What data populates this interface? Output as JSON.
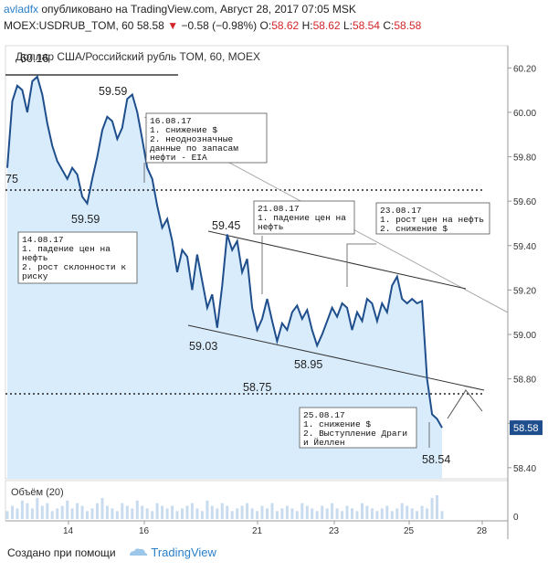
{
  "header": {
    "author": "avladfx",
    "published": "опубликовано на TradingView.com, Август 28, 2017 07:05 MSK",
    "symbol": "MOEX:USDRUB_TOM, 60",
    "last": "58.58",
    "change": "−0.58 (−0.98%)",
    "o_label": "O:",
    "o": "58.62",
    "h_label": "H:",
    "h": "58.62",
    "l_label": "L:",
    "l": "58.54",
    "c_label": "C:",
    "c": "58.58"
  },
  "chart_title": "Доллар США/Российский рубль TOM, 60, MOEX",
  "volume_label": "Объём (20)",
  "footer": {
    "created": "Создано при помощи",
    "brand": "TradingView"
  },
  "colors": {
    "line": "#1f4e8c",
    "area": "#d9ecfb",
    "price_tag": "#1f4e8c",
    "accent": "#2a7fc8",
    "down": "#d4272b"
  },
  "annotations": [
    {
      "id": "a1608",
      "lines": [
        "16.08.17",
        "1. снижение $",
        "2. неоднозначные",
        "данные по запасам",
        "нефти - EIA"
      ]
    },
    {
      "id": "a1408",
      "lines": [
        "14.08.17",
        "1. падение цен на",
        "нефть",
        "2. рост склонности к",
        "риску"
      ]
    },
    {
      "id": "a2108",
      "lines": [
        "21.08.17",
        "1. падение цен на",
        "нефть"
      ]
    },
    {
      "id": "a2308",
      "lines": [
        "23.08.17",
        "1. рост цен на нефть",
        "2. снижение $"
      ]
    },
    {
      "id": "a2508",
      "lines": [
        "25.08.17",
        "1. снижение $",
        "2. Выступление Драги",
        "и Йеллен"
      ]
    }
  ],
  "price_labels": [
    "60.16",
    "59.59",
    "59.59",
    "59.45",
    "59.03",
    "58.95",
    "58.75",
    "58.54",
    "75"
  ],
  "chart_data": {
    "type": "line",
    "x_tick_labels": [
      "14",
      "16",
      "21",
      "23",
      "25",
      "28"
    ],
    "y_tick_labels": [
      "60.20",
      "60.00",
      "59.80",
      "59.60",
      "59.40",
      "59.20",
      "59.00",
      "58.80",
      "58.60",
      "58.40"
    ],
    "ylim": [
      58.35,
      60.3
    ],
    "current_price": "58.58",
    "horizontal_levels": [
      60.16,
      59.65,
      58.75
    ],
    "series": [
      {
        "values": [
          59.75,
          60.05,
          60.12,
          60.1,
          60.0,
          60.14,
          60.16,
          60.08,
          59.95,
          59.85,
          59.78,
          59.74,
          59.7,
          59.75,
          59.72,
          59.62,
          59.59,
          59.7,
          59.8,
          59.92,
          59.98,
          59.96,
          59.88,
          59.93,
          60.06,
          60.08,
          60.0,
          59.88,
          59.75,
          59.7,
          59.58,
          59.48,
          59.52,
          59.42,
          59.28,
          59.38,
          59.35,
          59.2,
          59.36,
          59.24,
          59.12,
          59.18,
          59.03,
          59.22,
          59.45,
          59.38,
          59.42,
          59.28,
          59.34,
          59.12,
          59.02,
          59.07,
          59.16,
          59.06,
          58.97,
          59.05,
          59.02,
          59.1,
          59.13,
          59.07,
          59.11,
          59.02,
          58.95,
          59.0,
          59.06,
          59.12,
          59.08,
          59.14,
          59.12,
          59.02,
          59.1,
          59.06,
          59.16,
          59.14,
          59.06,
          59.14,
          59.1,
          59.22,
          59.26,
          59.16,
          59.14,
          59.16,
          59.14,
          59.15,
          58.8,
          58.64,
          58.62,
          58.58
        ]
      }
    ],
    "volume": [
      3,
      5,
      4,
      7,
      6,
      4,
      8,
      5,
      6,
      3,
      4,
      5,
      7,
      4,
      6,
      5,
      3,
      4,
      6,
      8,
      5,
      4,
      3,
      6,
      5,
      4,
      7,
      5,
      4,
      3,
      6,
      5,
      4,
      5,
      3,
      4,
      5,
      6,
      4,
      3,
      7,
      5,
      4,
      6,
      5,
      3,
      4,
      5,
      6,
      4,
      3,
      5,
      4,
      6,
      3,
      4,
      5,
      4,
      3,
      6,
      5,
      4,
      3,
      5,
      4,
      6,
      4,
      3,
      5,
      4,
      3,
      6,
      5,
      4,
      3,
      4,
      5,
      3,
      4,
      6,
      5,
      4,
      3,
      5,
      4,
      8,
      9,
      3
    ]
  }
}
